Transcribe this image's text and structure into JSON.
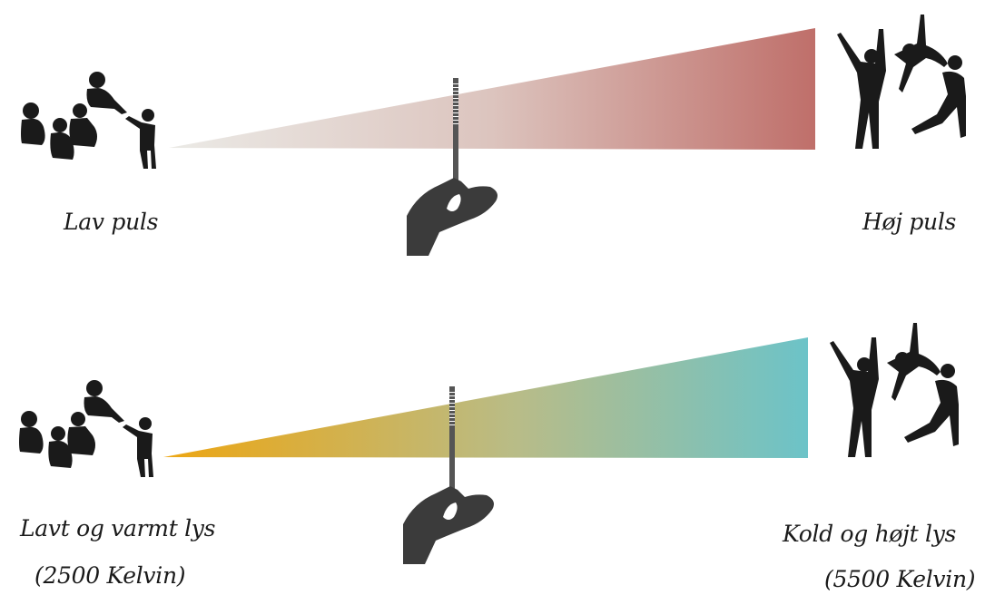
{
  "scales": [
    {
      "id": "pulse",
      "left_label": "Lav puls",
      "right_label": "Høj puls",
      "gradient": [
        "#ebeae6",
        "#dcc4be",
        "#bf6f6a"
      ]
    },
    {
      "id": "light",
      "left_label": "Lavt og varmt lys",
      "left_sub": "(2500 Kelvin)",
      "right_label": "Kold og højt lys",
      "right_sub": "(5500 Kelvin)",
      "gradient": [
        "#eda612",
        "#b8bc88",
        "#6cc3c8"
      ]
    }
  ],
  "icons": [
    "calm-group-icon",
    "energetic-group-icon",
    "hand-slider-icon"
  ]
}
